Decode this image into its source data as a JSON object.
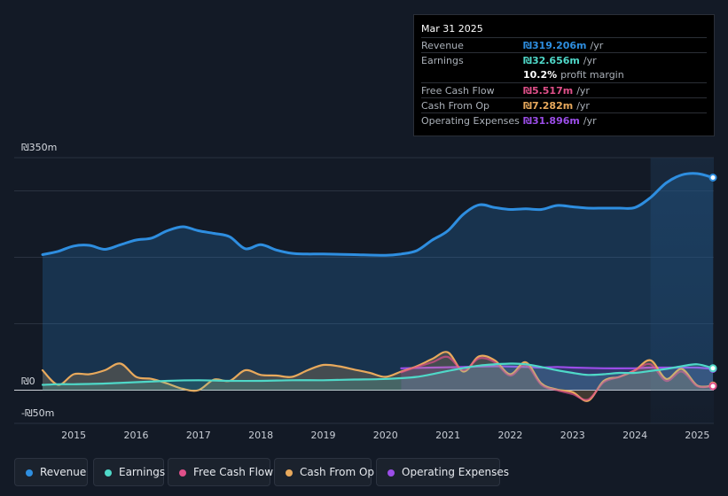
{
  "chart_data": {
    "type": "area",
    "y_axis": {
      "top_label": "₪350m",
      "zero_label": "₪0",
      "bottom_label": "-₪50m",
      "ylim": [
        -50,
        350
      ]
    },
    "x_ticks": [
      "2015",
      "2016",
      "2017",
      "2018",
      "2019",
      "2020",
      "2021",
      "2022",
      "2023",
      "2024",
      "2025"
    ],
    "x_range": [
      2014.5,
      2025.25
    ],
    "forecast_start": 2024.25,
    "series": [
      {
        "name": "Revenue",
        "color": "#2e8ee0",
        "fill": true,
        "points": [
          [
            2014.5,
            204
          ],
          [
            2014.75,
            209
          ],
          [
            2015.0,
            217
          ],
          [
            2015.25,
            218
          ],
          [
            2015.5,
            212
          ],
          [
            2015.75,
            219
          ],
          [
            2016.0,
            226
          ],
          [
            2016.25,
            229
          ],
          [
            2016.5,
            240
          ],
          [
            2016.75,
            246
          ],
          [
            2017.0,
            240
          ],
          [
            2017.25,
            236
          ],
          [
            2017.5,
            231
          ],
          [
            2017.75,
            213
          ],
          [
            2018.0,
            219
          ],
          [
            2018.25,
            211
          ],
          [
            2018.5,
            206
          ],
          [
            2018.75,
            205
          ],
          [
            2019.0,
            205
          ],
          [
            2019.5,
            204
          ],
          [
            2020.0,
            203
          ],
          [
            2020.25,
            205
          ],
          [
            2020.5,
            210
          ],
          [
            2020.75,
            226
          ],
          [
            2021.0,
            240
          ],
          [
            2021.25,
            265
          ],
          [
            2021.5,
            279
          ],
          [
            2021.75,
            275
          ],
          [
            2022.0,
            272
          ],
          [
            2022.25,
            273
          ],
          [
            2022.5,
            272
          ],
          [
            2022.75,
            278
          ],
          [
            2023.0,
            276
          ],
          [
            2023.25,
            274
          ],
          [
            2023.5,
            274
          ],
          [
            2023.75,
            274
          ],
          [
            2024.0,
            275
          ],
          [
            2024.25,
            290
          ],
          [
            2024.5,
            312
          ],
          [
            2024.75,
            324
          ],
          [
            2025.0,
            326
          ],
          [
            2025.25,
            320
          ]
        ]
      },
      {
        "name": "Earnings",
        "color": "#4fd8c8",
        "fill": true,
        "points": [
          [
            2014.5,
            8
          ],
          [
            2014.75,
            9
          ],
          [
            2015.0,
            9
          ],
          [
            2015.5,
            10
          ],
          [
            2016.0,
            12
          ],
          [
            2016.5,
            14
          ],
          [
            2017.0,
            15
          ],
          [
            2017.5,
            14
          ],
          [
            2018.0,
            14
          ],
          [
            2018.5,
            15
          ],
          [
            2019.0,
            15
          ],
          [
            2019.5,
            16
          ],
          [
            2020.0,
            17
          ],
          [
            2020.5,
            20
          ],
          [
            2021.0,
            29
          ],
          [
            2021.5,
            37
          ],
          [
            2022.0,
            40
          ],
          [
            2022.25,
            39
          ],
          [
            2022.5,
            35
          ],
          [
            2022.75,
            30
          ],
          [
            2023.0,
            26
          ],
          [
            2023.25,
            23
          ],
          [
            2023.5,
            24
          ],
          [
            2023.75,
            26
          ],
          [
            2024.0,
            26
          ],
          [
            2024.25,
            29
          ],
          [
            2024.5,
            32
          ],
          [
            2024.75,
            36
          ],
          [
            2025.0,
            39
          ],
          [
            2025.25,
            33
          ]
        ]
      },
      {
        "name": "Free Cash Flow",
        "color": "#e0508a",
        "fill": false,
        "points": [
          [
            2020.25,
            27
          ],
          [
            2020.5,
            35
          ],
          [
            2020.75,
            42
          ],
          [
            2021.0,
            50
          ],
          [
            2021.25,
            30
          ],
          [
            2021.5,
            48
          ],
          [
            2021.75,
            42
          ],
          [
            2022.0,
            22
          ],
          [
            2022.25,
            38
          ],
          [
            2022.5,
            8
          ],
          [
            2022.75,
            0
          ],
          [
            2023.0,
            -6
          ],
          [
            2023.25,
            -14
          ],
          [
            2023.5,
            12
          ],
          [
            2023.75,
            20
          ],
          [
            2024.0,
            30
          ],
          [
            2024.25,
            39
          ],
          [
            2024.5,
            14
          ],
          [
            2024.75,
            28
          ],
          [
            2025.0,
            6
          ],
          [
            2025.25,
            6
          ]
        ]
      },
      {
        "name": "Cash From Op",
        "color": "#e8a95c",
        "fill": true,
        "points": [
          [
            2014.5,
            30
          ],
          [
            2014.75,
            8
          ],
          [
            2015.0,
            24
          ],
          [
            2015.25,
            24
          ],
          [
            2015.5,
            30
          ],
          [
            2015.75,
            40
          ],
          [
            2016.0,
            20
          ],
          [
            2016.25,
            17
          ],
          [
            2016.5,
            10
          ],
          [
            2016.75,
            2
          ],
          [
            2017.0,
            0
          ],
          [
            2017.25,
            16
          ],
          [
            2017.5,
            14
          ],
          [
            2017.75,
            30
          ],
          [
            2018.0,
            23
          ],
          [
            2018.25,
            22
          ],
          [
            2018.5,
            20
          ],
          [
            2018.75,
            30
          ],
          [
            2019.0,
            38
          ],
          [
            2019.25,
            36
          ],
          [
            2019.5,
            31
          ],
          [
            2019.75,
            26
          ],
          [
            2020.0,
            20
          ],
          [
            2020.25,
            28
          ],
          [
            2020.5,
            36
          ],
          [
            2020.75,
            47
          ],
          [
            2021.0,
            57
          ],
          [
            2021.25,
            28
          ],
          [
            2021.5,
            51
          ],
          [
            2021.75,
            45
          ],
          [
            2022.0,
            24
          ],
          [
            2022.25,
            42
          ],
          [
            2022.5,
            10
          ],
          [
            2022.75,
            1
          ],
          [
            2023.0,
            -3
          ],
          [
            2023.25,
            -16
          ],
          [
            2023.5,
            14
          ],
          [
            2023.75,
            20
          ],
          [
            2024.0,
            30
          ],
          [
            2024.25,
            45
          ],
          [
            2024.5,
            17
          ],
          [
            2024.75,
            32
          ],
          [
            2025.0,
            7
          ],
          [
            2025.25,
            7
          ]
        ]
      },
      {
        "name": "Operating Expenses",
        "color": "#9b4de8",
        "fill": true,
        "points": [
          [
            2020.25,
            33
          ],
          [
            2020.75,
            34
          ],
          [
            2021.25,
            35
          ],
          [
            2021.75,
            36
          ],
          [
            2022.25,
            35
          ],
          [
            2022.5,
            34
          ],
          [
            2022.75,
            35
          ],
          [
            2023.0,
            34
          ],
          [
            2023.5,
            33
          ],
          [
            2024.0,
            33
          ],
          [
            2024.25,
            34
          ],
          [
            2024.75,
            34
          ],
          [
            2025.0,
            34
          ],
          [
            2025.25,
            32
          ]
        ]
      }
    ]
  },
  "tooltip": {
    "date": "Mar 31 2025",
    "rows": [
      {
        "label": "Revenue",
        "value": "₪319.206m",
        "unit": "/yr",
        "color": "#2e8ee0"
      },
      {
        "label": "Earnings",
        "value": "₪32.656m",
        "unit": "/yr",
        "color": "#4fd8c8"
      },
      {
        "label": "",
        "value": "10.2%",
        "unit": "profit margin",
        "color": "#ffffff"
      },
      {
        "label": "Free Cash Flow",
        "value": "₪5.517m",
        "unit": "/yr",
        "color": "#e0508a"
      },
      {
        "label": "Cash From Op",
        "value": "₪7.282m",
        "unit": "/yr",
        "color": "#e8a95c"
      },
      {
        "label": "Operating Expenses",
        "value": "₪31.896m",
        "unit": "/yr",
        "color": "#9b4de8"
      }
    ]
  },
  "legend": [
    {
      "label": "Revenue",
      "color": "#2e8ee0"
    },
    {
      "label": "Earnings",
      "color": "#4fd8c8"
    },
    {
      "label": "Free Cash Flow",
      "color": "#e0508a"
    },
    {
      "label": "Cash From Op",
      "color": "#e8a95c"
    },
    {
      "label": "Operating Expenses",
      "color": "#9b4de8"
    }
  ]
}
